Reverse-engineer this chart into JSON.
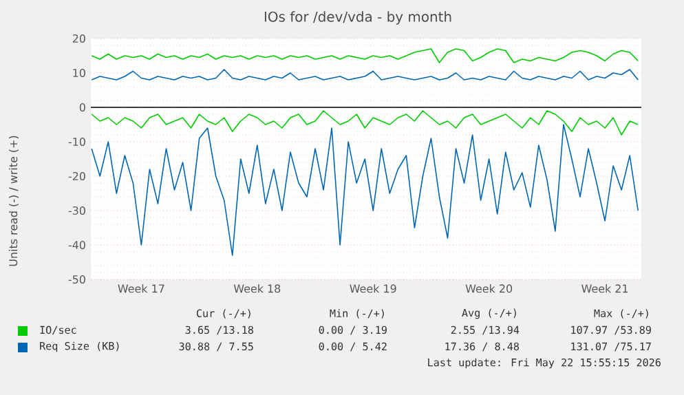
{
  "chart_data": {
    "type": "line",
    "title": "IOs for /dev/vda - by month",
    "ylabel": "Units read (-) / write (+)",
    "categories": [
      null,
      null,
      null,
      null,
      null,
      null,
      "Week 17",
      null,
      null,
      null,
      null,
      null,
      null,
      null,
      null,
      null,
      null,
      null,
      null,
      null,
      "Week 18",
      null,
      null,
      null,
      null,
      null,
      null,
      null,
      null,
      null,
      null,
      null,
      null,
      null,
      "Week 19",
      null,
      null,
      null,
      null,
      null,
      null,
      null,
      null,
      null,
      null,
      null,
      null,
      null,
      "Week 20",
      null,
      null,
      null,
      null,
      null,
      null,
      null,
      null,
      null,
      null,
      null,
      null,
      null,
      "Week 21",
      null,
      null,
      null,
      null
    ],
    "series": [
      {
        "name": "IO/sec",
        "color": "#00cc00",
        "values": [
          15,
          14,
          15.5,
          14,
          15,
          14.5,
          15,
          14,
          15.5,
          14.5,
          15,
          14,
          15,
          14.5,
          15.5,
          14,
          15,
          14.5,
          15,
          14,
          15,
          14.5,
          15,
          14,
          15,
          14.5,
          15,
          14,
          14.5,
          15,
          14,
          15,
          14.5,
          14,
          15,
          14.5,
          15,
          14,
          15,
          16,
          16.5,
          17,
          13,
          16,
          17,
          16.5,
          13.5,
          14.5,
          16,
          17,
          16.5,
          13,
          14,
          13.5,
          14.5,
          14,
          13.5,
          14.5,
          16,
          16.5,
          16,
          15,
          13.5,
          15.5,
          16.5,
          16,
          13.5
        ]
      },
      {
        "color": "#00cc00",
        "values": [
          -2,
          -4,
          -3,
          -5,
          -3,
          -4,
          -6,
          -3,
          -2,
          -5,
          -4,
          -3,
          -6,
          -2,
          -4,
          -5,
          -3,
          -7,
          -4,
          -2,
          -3,
          -5,
          -4,
          -6,
          -3,
          -2,
          -5,
          -4,
          -1,
          -3,
          -5,
          -4,
          -2,
          -6,
          -3,
          -4,
          -5,
          -3,
          -2,
          -4,
          -1,
          -3,
          -5,
          -4,
          -6,
          -3,
          -2,
          -5,
          -4,
          -3,
          -2,
          -4,
          -6,
          -3,
          -5,
          -1,
          -2,
          -4,
          -7,
          -3,
          -5,
          -4,
          -6,
          -3,
          -8,
          -4,
          -5
        ]
      },
      {
        "name": "Req Size (KB)",
        "color": "#0066b3",
        "values": [
          8,
          9,
          8.5,
          8,
          9,
          10.5,
          8.5,
          8,
          9,
          8.5,
          8,
          9,
          8.5,
          9,
          8,
          8.5,
          11,
          8.5,
          8,
          9,
          8.5,
          8,
          9,
          8.5,
          10,
          8,
          8.5,
          9,
          8,
          8.5,
          9,
          8,
          8.5,
          9,
          10.5,
          8,
          8.5,
          9,
          8.5,
          8,
          8.5,
          9,
          8,
          8.5,
          10,
          8,
          8.5,
          8,
          9,
          8.5,
          8,
          10.5,
          8.5,
          8,
          9,
          8.5,
          8,
          9,
          8.5,
          10.5,
          8,
          9,
          8.5,
          10,
          9.5,
          11,
          8
        ]
      },
      {
        "color": "#0066b3",
        "values": [
          -12,
          -20,
          -10,
          -25,
          -14,
          -22,
          -40,
          -18,
          -28,
          -12,
          -24,
          -16,
          -30,
          -9,
          -6,
          -20,
          -27,
          -43,
          -15,
          -25,
          -11,
          -28,
          -18,
          -30,
          -13,
          -22,
          -26,
          -12,
          -24,
          -6,
          -40,
          -10,
          -22,
          -15,
          -30,
          -12,
          -25,
          -18,
          -14,
          -35,
          -20,
          -9,
          -26,
          -38,
          -12,
          -22,
          -8,
          -27,
          -15,
          -31,
          -13,
          -24,
          -19,
          -29,
          -11,
          -21,
          -36,
          -5,
          -15,
          -26,
          -12,
          -22,
          -33,
          -17,
          -24,
          -14,
          -30
        ]
      }
    ],
    "ylim": [
      -50,
      20
    ],
    "yticks": [
      -50,
      -40,
      -30,
      -20,
      -10,
      0,
      10,
      20
    ],
    "ref_lines": [
      {
        "axis": "y",
        "value": 0,
        "color": "#000000"
      }
    ],
    "grid": "y",
    "legend": "bottom",
    "annotations": [
      "Cur (-/+)",
      "Min (-/+)",
      "Avg (-/+)",
      "Max (-/+)",
      "3.65 /13.18",
      "0.00 / 3.19",
      "2.55 /13.94",
      "107.97 /53.89",
      "30.88 / 7.55",
      "0.00 / 5.42",
      "17.36 / 8.48",
      "131.07 /75.17",
      "Last update: Fri May 22 15:55:15 2026"
    ]
  }
}
